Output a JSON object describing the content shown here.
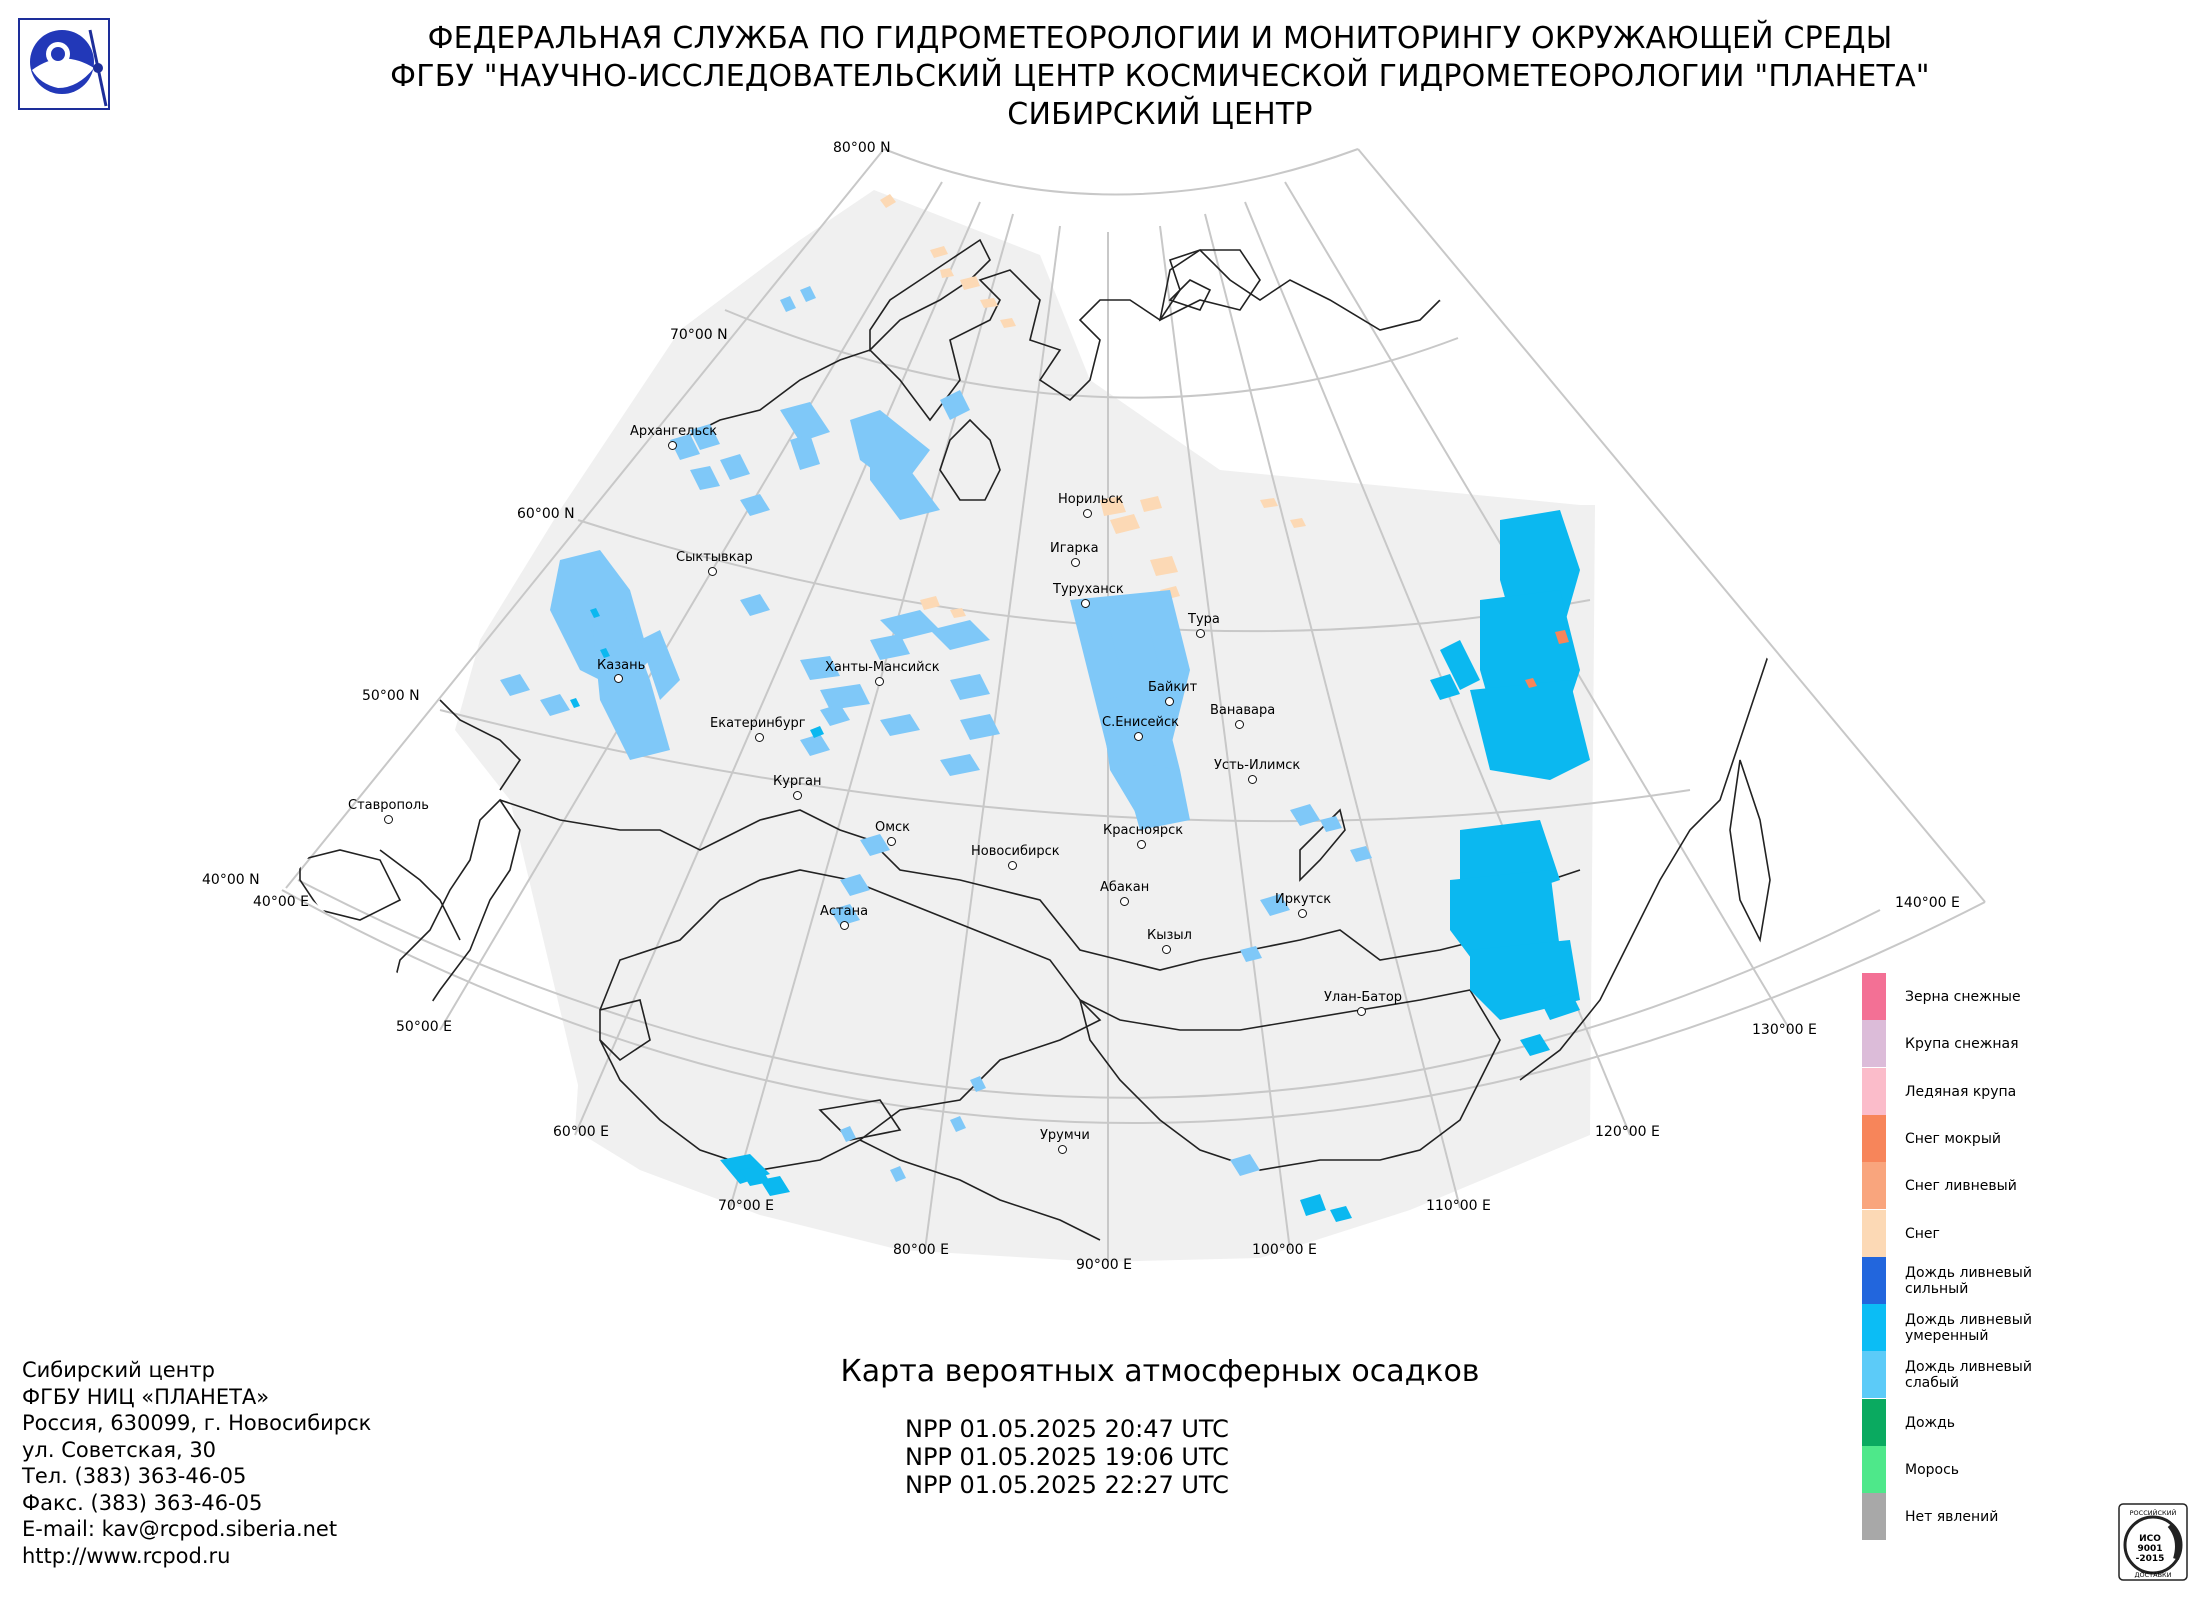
{
  "header": {
    "line1": "ФЕДЕРАЛЬНАЯ СЛУЖБА ПО ГИДРОМЕТЕОРОЛОГИИ И МОНИТОРИНГУ ОКРУЖАЮЩЕЙ СРЕДЫ",
    "line2": "ФГБУ \"НАУЧНО-ИССЛЕДОВАТЕЛЬСКИЙ ЦЕНТР КОСМИЧЕСКОЙ ГИДРОМЕТЕОРОЛОГИИ \"ПЛАНЕТА\"",
    "line3": "СИБИРСКИЙ ЦЕНТР"
  },
  "logo_icon": "planeta-agency-logo-icon",
  "iso_icon": "iso-9001-2015-certification-stamp-icon",
  "iso_text": {
    "top": "РОССИЙСКИЙ",
    "mid": "ИСО",
    "num": "9001",
    "year": "-2015",
    "bottom": "ДОСТАВКИ"
  },
  "map": {
    "projection": "conic",
    "parallels_deg": [
      40,
      50,
      60,
      70,
      80
    ],
    "meridians_deg": [
      40,
      50,
      60,
      70,
      80,
      90,
      100,
      110,
      120,
      130,
      140
    ],
    "latitude_labels": [
      "80°00 N",
      "70°00 N",
      "60°00 N",
      "50°00 N",
      "40°00 N"
    ],
    "longitude_labels": [
      "40°00 E",
      "50°00 E",
      "60°00 E",
      "70°00 E",
      "80°00 E",
      "90°00 E",
      "100°00 E",
      "110°00 E",
      "120°00 E",
      "130°00 E",
      "140°00 E"
    ],
    "cities": [
      {
        "name": "Архангельск"
      },
      {
        "name": "Сыктывкар"
      },
      {
        "name": "Казань"
      },
      {
        "name": "Екатеринбург"
      },
      {
        "name": "Ханты-Мансийск"
      },
      {
        "name": "Курган"
      },
      {
        "name": "Ставрополь"
      },
      {
        "name": "Омск"
      },
      {
        "name": "Астана"
      },
      {
        "name": "Новосибирск"
      },
      {
        "name": "Норильск"
      },
      {
        "name": "Игарка"
      },
      {
        "name": "Туруханск"
      },
      {
        "name": "Тура"
      },
      {
        "name": "Байкит"
      },
      {
        "name": "Ванавара"
      },
      {
        "name": "С.Енисейск"
      },
      {
        "name": "Усть-Илимск"
      },
      {
        "name": "Красноярск"
      },
      {
        "name": "Абакан"
      },
      {
        "name": "Иркутск"
      },
      {
        "name": "Кызыл"
      },
      {
        "name": "Улан-Батор"
      },
      {
        "name": "Урумчи"
      }
    ],
    "colors": {
      "coverage": "#f0f0f0",
      "graticule": "#c8c8c8",
      "coast": "#222222",
      "rain_light": "#7fc8f8",
      "rain_moderate": "#0bb8f0",
      "snow": "#fcd9b5",
      "snow_wet": "#f7855a"
    }
  },
  "legend": {
    "items": [
      {
        "label": "Зерна снежные",
        "color": "#f37095"
      },
      {
        "label": "Крупа снежная",
        "color": "#dcbcd9"
      },
      {
        "label": "Ледяная крупа",
        "color": "#fbbcca"
      },
      {
        "label": "Снег мокрый",
        "color": "#f7855a"
      },
      {
        "label": "Снег ливневый",
        "color": "#f9a57d"
      },
      {
        "label": "Снег",
        "color": "#fcd9b5"
      },
      {
        "label": "Дождь ливневый сильный",
        "color": "#2266dd"
      },
      {
        "label": "Дождь ливневый умеренный",
        "color": "#0bbdf5"
      },
      {
        "label": "Дождь ливневый слабый",
        "color": "#5ccbf8"
      },
      {
        "label": "Дождь",
        "color": "#0aaa60"
      },
      {
        "label": "Морось",
        "color": "#4ee88a"
      },
      {
        "label": "Нет явлений",
        "color": "#a8a8a8"
      }
    ]
  },
  "footer": {
    "org_lines": [
      "Сибирский центр",
      "ФГБУ НИЦ «ПЛАНЕТА»",
      "Россия, 630099, г. Новосибирск",
      "ул. Советская, 30",
      "Тел. (383) 363-46-05",
      "Факс. (383) 363-46-05",
      "E-mail: kav@rcpod.siberia.net",
      "http://www.rcpod.ru"
    ],
    "map_title": "Карта вероятных атмосферных осадков",
    "passes": [
      "NPP 01.05.2025  20:47 UTC",
      "NPP 01.05.2025  19:06 UTC",
      "NPP 01.05.2025  22:27 UTC"
    ]
  }
}
